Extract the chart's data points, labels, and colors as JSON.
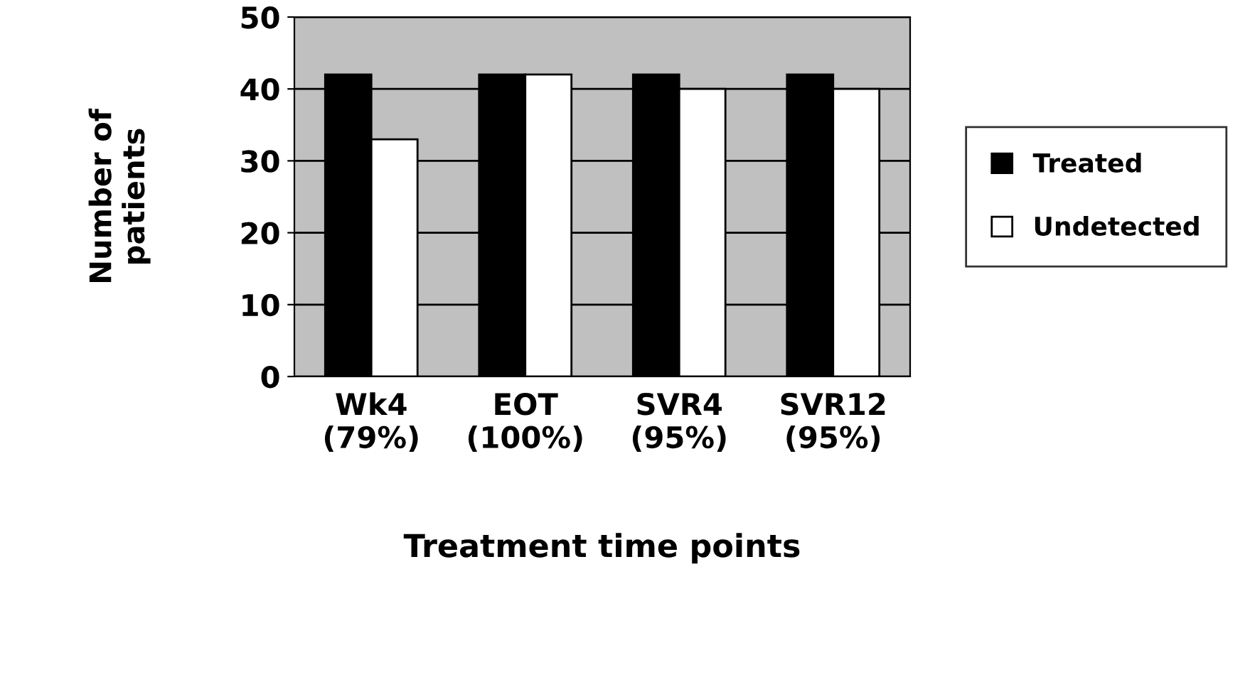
{
  "chart_data": {
    "type": "bar",
    "categories": [
      "Wk4\n(79%)",
      "EOT\n(100%)",
      "SVR4\n(95%)",
      "SVR12\n(95%)"
    ],
    "series": [
      {
        "name": "Treated",
        "color": "#000000",
        "values": [
          42,
          42,
          42,
          42
        ]
      },
      {
        "name": "Undetected",
        "color": "#ffffff",
        "values": [
          33,
          42,
          40,
          40
        ]
      }
    ],
    "xlabel": "Treatment time points",
    "ylabel": "Number of\npatients",
    "ylim": [
      0,
      50
    ],
    "yticks": [
      0,
      10,
      20,
      30,
      40,
      50
    ],
    "grid": "y",
    "legend": "right"
  }
}
